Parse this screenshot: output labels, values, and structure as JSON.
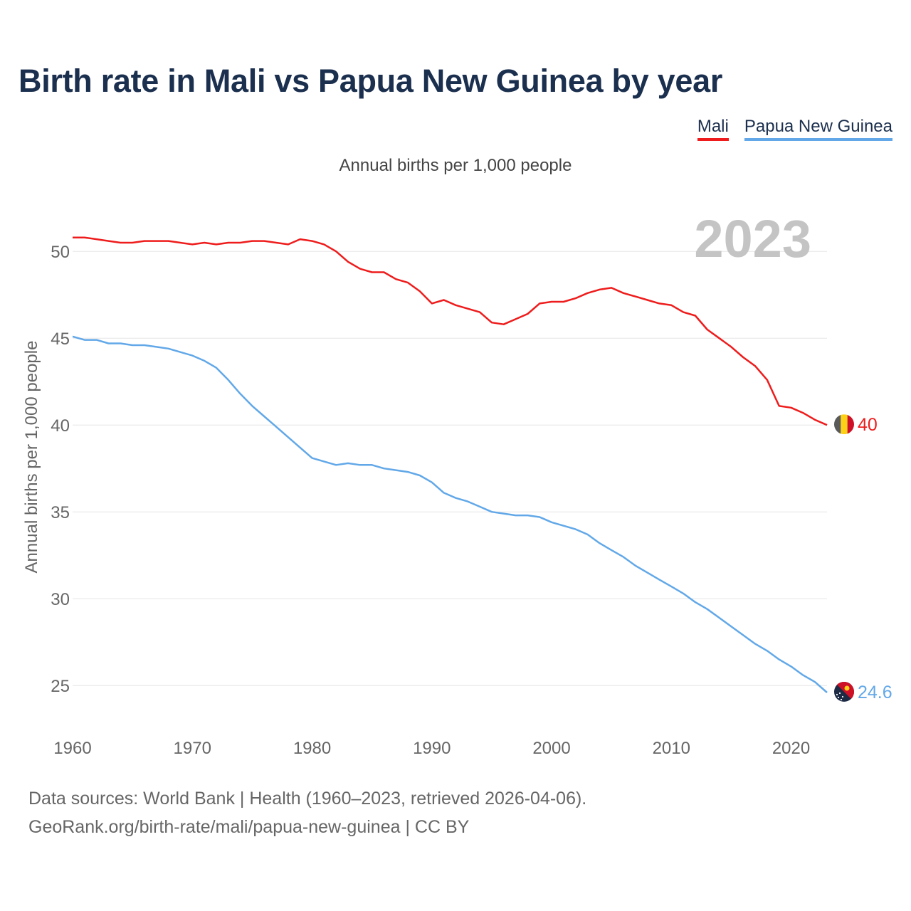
{
  "title": "Birth rate in Mali vs Papua New Guinea by year",
  "legend": {
    "mali": "Mali",
    "png": "Papua New Guinea"
  },
  "footer": {
    "line1": "Data sources: World Bank | Health (1960–2023, retrieved 2026-04-06).",
    "line2": "GeoRank.org/birth-rate/mali/papua-new-guinea | CC BY"
  },
  "colors": {
    "mali": "#ee1c1c",
    "png": "#62a8e8",
    "title": "#1b2f4e",
    "grid": "#e5e5e5"
  },
  "chart_data": {
    "type": "line",
    "title": "Birth rate in Mali vs Papua New Guinea by year",
    "subtitle": "Annual births per 1,000 people",
    "ylabel": "Annual births per 1,000 people",
    "xlabel": "",
    "current_year": "2023",
    "xlim": [
      1960,
      2023
    ],
    "ylim": [
      23,
      53
    ],
    "x_ticks": [
      1960,
      1970,
      1980,
      1990,
      2000,
      2010,
      2020
    ],
    "y_ticks": [
      25,
      30,
      35,
      40,
      45,
      50
    ],
    "grid": true,
    "x": [
      1960,
      1961,
      1962,
      1963,
      1964,
      1965,
      1966,
      1967,
      1968,
      1969,
      1970,
      1971,
      1972,
      1973,
      1974,
      1975,
      1976,
      1977,
      1978,
      1979,
      1980,
      1981,
      1982,
      1983,
      1984,
      1985,
      1986,
      1987,
      1988,
      1989,
      1990,
      1991,
      1992,
      1993,
      1994,
      1995,
      1996,
      1997,
      1998,
      1999,
      2000,
      2001,
      2002,
      2003,
      2004,
      2005,
      2006,
      2007,
      2008,
      2009,
      2010,
      2011,
      2012,
      2013,
      2014,
      2015,
      2016,
      2017,
      2018,
      2019,
      2020,
      2021,
      2022,
      2023
    ],
    "series": [
      {
        "name": "Mali",
        "color": "#ee1c1c",
        "end_label": "40",
        "flag": "mali-flag-icon",
        "values": [
          50.8,
          50.8,
          50.7,
          50.6,
          50.5,
          50.5,
          50.6,
          50.6,
          50.6,
          50.5,
          50.4,
          50.5,
          50.4,
          50.5,
          50.5,
          50.6,
          50.6,
          50.5,
          50.4,
          50.7,
          50.6,
          50.4,
          50.0,
          49.4,
          49.0,
          48.8,
          48.8,
          48.4,
          48.2,
          47.7,
          47.0,
          47.2,
          46.9,
          46.7,
          46.5,
          45.9,
          45.8,
          46.1,
          46.4,
          47.0,
          47.1,
          47.1,
          47.3,
          47.6,
          47.8,
          47.9,
          47.6,
          47.4,
          47.2,
          47.0,
          46.9,
          46.5,
          46.3,
          45.5,
          45.0,
          44.5,
          43.9,
          43.4,
          42.6,
          41.1,
          41.0,
          40.7,
          40.3,
          40.0
        ]
      },
      {
        "name": "Papua New Guinea",
        "color": "#62a8e8",
        "end_label": "24.6",
        "flag": "papua-new-guinea-flag-icon",
        "values": [
          45.1,
          44.9,
          44.9,
          44.7,
          44.7,
          44.6,
          44.6,
          44.5,
          44.4,
          44.2,
          44.0,
          43.7,
          43.3,
          42.6,
          41.8,
          41.1,
          40.5,
          39.9,
          39.3,
          38.7,
          38.1,
          37.9,
          37.7,
          37.8,
          37.7,
          37.7,
          37.5,
          37.4,
          37.3,
          37.1,
          36.7,
          36.1,
          35.8,
          35.6,
          35.3,
          35.0,
          34.9,
          34.8,
          34.8,
          34.7,
          34.4,
          34.2,
          34.0,
          33.7,
          33.2,
          32.8,
          32.4,
          31.9,
          31.5,
          31.1,
          30.7,
          30.3,
          29.8,
          29.4,
          28.9,
          28.4,
          27.9,
          27.4,
          27.0,
          26.5,
          26.1,
          25.6,
          25.2,
          24.6
        ]
      }
    ]
  }
}
